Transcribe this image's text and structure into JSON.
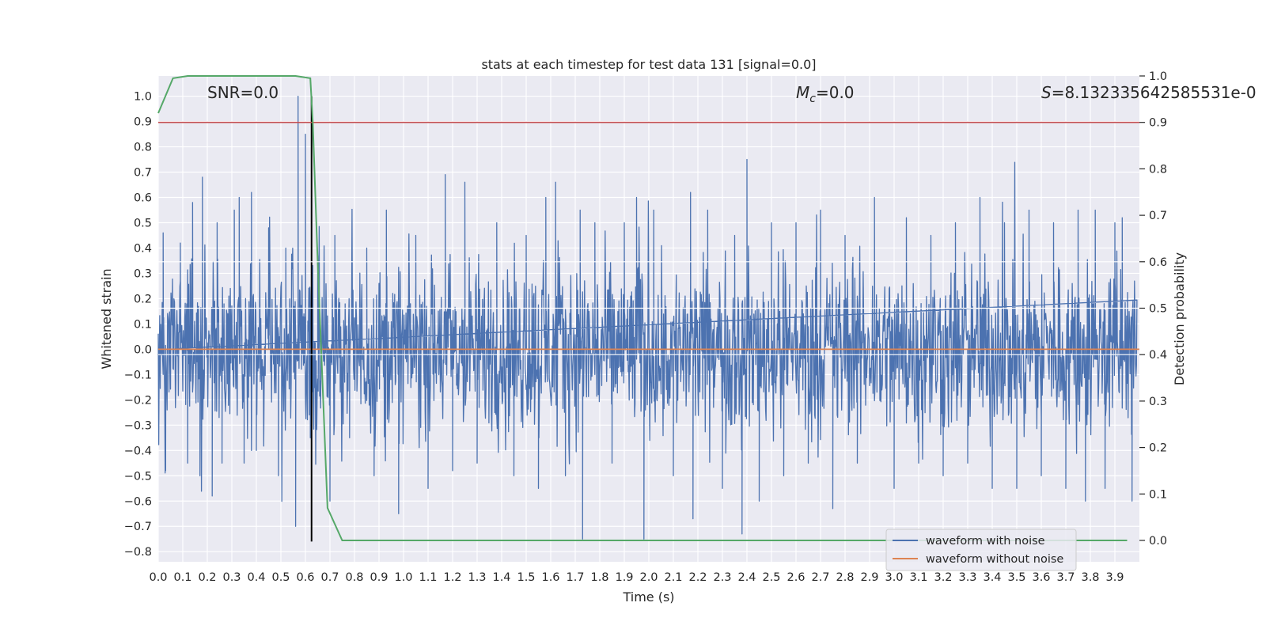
{
  "chart_data": {
    "type": "line",
    "title": "stats at each timestep for test data 131 [signal=0.0]",
    "xlabel": "Time (s)",
    "ylabel": "Whitened strain",
    "y2label": "Detection probability",
    "xlim": [
      0.0,
      4.0
    ],
    "ylim": [
      -0.84,
      1.08
    ],
    "y2lim": [
      -0.046,
      1.0
    ],
    "x_ticks": [
      0.0,
      0.1,
      0.2,
      0.3,
      0.4,
      0.5,
      0.6,
      0.7,
      0.8,
      0.9,
      1.0,
      1.1,
      1.2,
      1.3,
      1.4,
      1.5,
      1.6,
      1.7,
      1.8,
      1.9,
      2.0,
      2.1,
      2.2,
      2.3,
      2.4,
      2.5,
      2.6,
      2.7,
      2.8,
      2.9,
      3.0,
      3.1,
      3.2,
      3.3,
      3.4,
      3.5,
      3.6,
      3.7,
      3.8,
      3.9
    ],
    "x_tick_labels": [
      "0.0",
      "0.1",
      "0.2",
      "0.3",
      "0.4",
      "0.5",
      "0.6",
      "0.7",
      "0.8",
      "0.9",
      "1.0",
      "1.1",
      "1.2",
      "1.3",
      "1.4",
      "1.5",
      "1.6",
      "1.7",
      "1.8",
      "1.9",
      "2.0",
      "2.1",
      "2.2",
      "2.3",
      "2.4",
      "2.5",
      "2.6",
      "2.7",
      "2.8",
      "2.9",
      "3.0",
      "3.1",
      "3.2",
      "3.3",
      "3.4",
      "3.5",
      "3.6",
      "3.7",
      "3.8",
      "3.9"
    ],
    "y_ticks": [
      1.0,
      0.9,
      0.8,
      0.7,
      0.6,
      0.5,
      0.4,
      0.3,
      0.2,
      0.1,
      0.0,
      -0.1,
      -0.2,
      -0.3,
      -0.4,
      -0.5,
      -0.6,
      -0.7,
      -0.8
    ],
    "y_tick_labels": [
      "1.0",
      "0.9",
      "0.8",
      "0.7",
      "0.6",
      "0.5",
      "0.4",
      "0.3",
      "0.2",
      "0.1",
      "0.0",
      "−0.1",
      "−0.2",
      "−0.3",
      "−0.4",
      "−0.5",
      "−0.6",
      "−0.7",
      "−0.8"
    ],
    "y2_ticks": [
      1.0,
      0.9,
      0.8,
      0.7,
      0.6,
      0.5,
      0.4,
      0.3,
      0.2,
      0.1,
      0.0
    ],
    "y2_tick_labels": [
      "1.0",
      "0.9",
      "0.8",
      "0.7",
      "0.6",
      "0.5",
      "0.4",
      "0.3",
      "0.2",
      "0.1",
      "0.0"
    ],
    "annotations": {
      "snr": "SNR=0.0",
      "mc_symbol": "M",
      "mc_subscript": "c",
      "mc_value": "=0.0",
      "s_symbol": "S",
      "s_value": "=8.132335642585531e-0"
    },
    "legend": {
      "position": "lower right",
      "entries": [
        "waveform with noise",
        "waveform without noise"
      ]
    },
    "noise_series": {
      "name": "waveform with noise",
      "color": "#4c72b0",
      "x_start": 0.0,
      "x_end": 3.99,
      "spikes": [
        [
          0.02,
          0.46
        ],
        [
          0.03,
          -0.48
        ],
        [
          0.09,
          0.42
        ],
        [
          0.12,
          -0.45
        ],
        [
          0.14,
          0.58
        ],
        [
          0.17,
          -0.5
        ],
        [
          0.18,
          0.68
        ],
        [
          0.22,
          -0.58
        ],
        [
          0.24,
          0.5
        ],
        [
          0.26,
          -0.45
        ],
        [
          0.31,
          0.55
        ],
        [
          0.33,
          0.6
        ],
        [
          0.35,
          -0.45
        ],
        [
          0.38,
          0.62
        ],
        [
          0.4,
          -0.4
        ],
        [
          0.45,
          0.48
        ],
        [
          0.49,
          -0.5
        ],
        [
          0.52,
          0.4
        ],
        [
          0.56,
          -0.7
        ],
        [
          0.57,
          1.0
        ],
        [
          0.6,
          0.85
        ],
        [
          0.62,
          -0.35
        ],
        [
          0.65,
          0.37
        ],
        [
          0.7,
          -0.6
        ],
        [
          0.72,
          0.45
        ],
        [
          0.78,
          -0.35
        ],
        [
          0.85,
          0.4
        ],
        [
          0.88,
          -0.5
        ],
        [
          0.93,
          0.55
        ],
        [
          0.98,
          -0.65
        ],
        [
          1.05,
          0.45
        ],
        [
          1.1,
          -0.55
        ],
        [
          1.17,
          0.69
        ],
        [
          1.2,
          -0.48
        ],
        [
          1.25,
          0.66
        ],
        [
          1.3,
          -0.45
        ],
        [
          1.38,
          0.5
        ],
        [
          1.45,
          -0.5
        ],
        [
          1.5,
          0.45
        ],
        [
          1.55,
          -0.55
        ],
        [
          1.58,
          0.6
        ],
        [
          1.62,
          0.66
        ],
        [
          1.66,
          -0.5
        ],
        [
          1.72,
          0.55
        ],
        [
          1.73,
          -0.75
        ],
        [
          1.78,
          0.5
        ],
        [
          1.85,
          -0.45
        ],
        [
          1.9,
          0.5
        ],
        [
          1.95,
          0.6
        ],
        [
          1.98,
          -0.75
        ],
        [
          2.02,
          0.55
        ],
        [
          2.1,
          -0.5
        ],
        [
          2.17,
          0.62
        ],
        [
          2.18,
          -0.67
        ],
        [
          2.24,
          0.55
        ],
        [
          2.3,
          -0.55
        ],
        [
          2.35,
          0.45
        ],
        [
          2.38,
          -0.73
        ],
        [
          2.4,
          0.75
        ],
        [
          2.45,
          -0.6
        ],
        [
          2.5,
          0.5
        ],
        [
          2.55,
          -0.5
        ],
        [
          2.6,
          0.5
        ],
        [
          2.65,
          -0.45
        ],
        [
          2.7,
          0.55
        ],
        [
          2.75,
          -0.63
        ],
        [
          2.8,
          0.45
        ],
        [
          2.85,
          -0.45
        ],
        [
          2.92,
          0.6
        ],
        [
          3.0,
          -0.55
        ],
        [
          3.05,
          0.52
        ],
        [
          3.1,
          -0.45
        ],
        [
          3.15,
          0.45
        ],
        [
          3.2,
          -0.5
        ],
        [
          3.25,
          0.5
        ],
        [
          3.3,
          -0.45
        ],
        [
          3.35,
          0.6
        ],
        [
          3.4,
          -0.55
        ],
        [
          3.45,
          0.5
        ],
        [
          3.5,
          -0.55
        ],
        [
          3.55,
          0.55
        ],
        [
          3.6,
          -0.5
        ],
        [
          3.65,
          0.5
        ],
        [
          3.7,
          -0.55
        ],
        [
          3.75,
          0.55
        ],
        [
          3.78,
          -0.6
        ],
        [
          3.82,
          0.55
        ],
        [
          3.86,
          -0.55
        ],
        [
          3.9,
          0.5
        ],
        [
          3.93,
          0.52
        ],
        [
          3.97,
          -0.6
        ]
      ]
    },
    "clean_series": {
      "name": "waveform without noise",
      "color": "#dd8452",
      "x": [
        0.0,
        4.0
      ],
      "y": [
        0.0,
        0.0
      ]
    },
    "probability_series": {
      "name": "detection probability",
      "color": "#55a868",
      "x": [
        0.0,
        0.06,
        0.12,
        0.19,
        0.25,
        0.31,
        0.37,
        0.44,
        0.5,
        0.56,
        0.62,
        0.63,
        0.65,
        0.69,
        0.75,
        0.81,
        0.87,
        1.0,
        1.5,
        2.0,
        2.5,
        3.0,
        3.5,
        3.95
      ],
      "y": [
        0.92,
        0.995,
        1.0,
        1.0,
        1.0,
        1.0,
        1.0,
        1.0,
        1.0,
        1.0,
        0.995,
        0.9,
        0.6,
        0.07,
        0.0,
        0.0,
        0.0,
        0.0,
        0.0,
        0.0,
        0.0,
        0.0,
        0.0,
        0.0
      ]
    },
    "threshold_line": {
      "color": "#c44e52",
      "y2": 0.9
    },
    "vertical_marker": {
      "color": "#000000",
      "x": 0.625,
      "y_from": -0.76,
      "y_to": 1.0
    }
  }
}
